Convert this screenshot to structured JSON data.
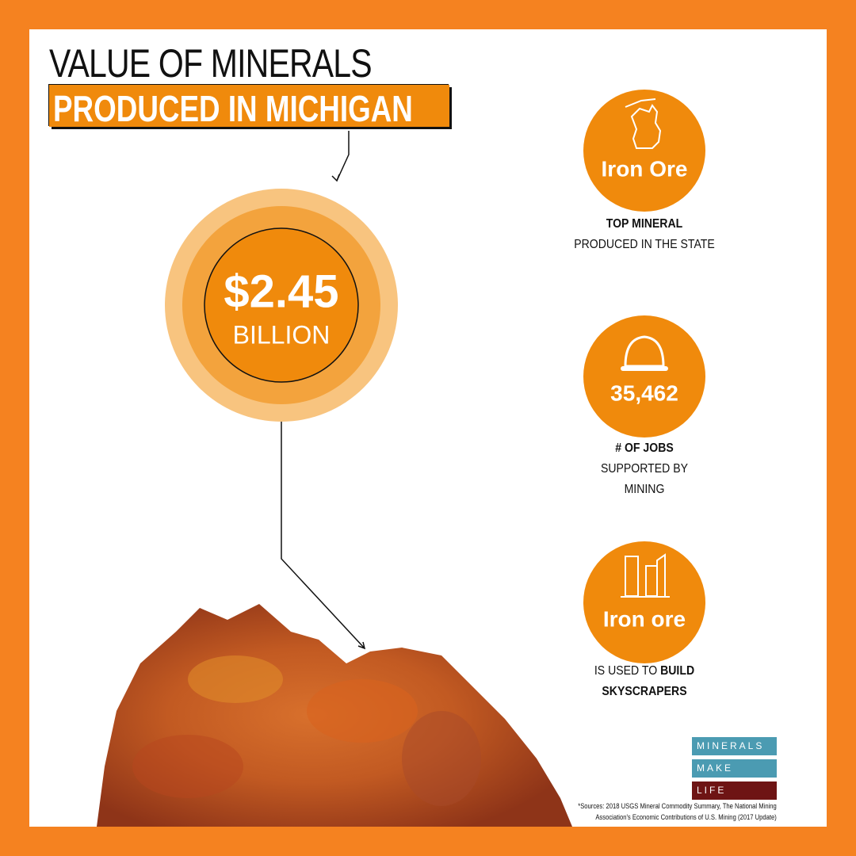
{
  "header": {
    "title_line1": "VALUE OF MINERALS",
    "title_line2": "PRODUCED IN MICHIGAN"
  },
  "value": {
    "amount": "$2.45",
    "unit": "BILLION"
  },
  "facts": [
    {
      "label": "Iron Ore",
      "caption_bold": "TOP MINERAL",
      "caption": "PRODUCED IN THE STATE"
    },
    {
      "label": "35,462",
      "caption_bold": "# OF JOBS",
      "caption": "SUPPORTED BY MINING"
    },
    {
      "label": "Iron ore",
      "caption": "IS USED TO",
      "caption_bold": "BUILD SKYSCRAPERS"
    }
  ],
  "logo": [
    "MINERALS",
    "MAKE",
    "LIFE"
  ],
  "sources": [
    "*Sources: 2018 USGS Mineral Commodity Summary, The National Mining",
    "Association's  Economic Contributions of U.S. Mining (2017 Update)"
  ]
}
